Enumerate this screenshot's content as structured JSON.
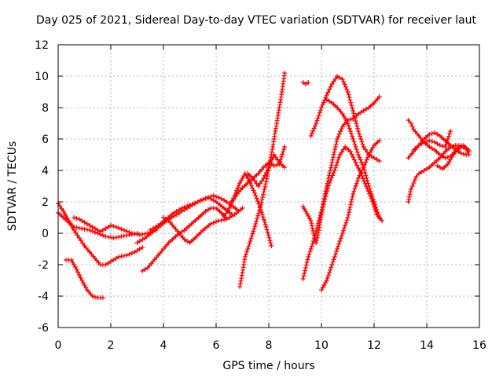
{
  "chart_data": {
    "type": "scatter",
    "title": "Day 025 of 2021, Sidereal Day-to-day VTEC variation (SDTVAR) for receiver laut",
    "xlabel": "GPS time / hours",
    "ylabel": "SDTVAR / TECUs",
    "xlim": [
      0,
      16
    ],
    "ylim": [
      -6,
      12
    ],
    "xticks": [
      0,
      2,
      4,
      6,
      8,
      10,
      12,
      14,
      16
    ],
    "yticks": [
      -6,
      -4,
      -2,
      0,
      2,
      4,
      6,
      8,
      10,
      12
    ],
    "grid": true,
    "marker": "plus",
    "color": "#ff0000",
    "series": [
      {
        "x": [
          0.3,
          0.5,
          0.7,
          0.9,
          1.1,
          1.3,
          1.5,
          1.7
        ],
        "y": [
          -1.7,
          -1.7,
          -2.3,
          -3.0,
          -3.6,
          -4.0,
          -4.1,
          -4.1
        ]
      },
      {
        "x": [
          0.0,
          0.2,
          0.4,
          0.6,
          0.9,
          1.2,
          1.5,
          1.8,
          2.1,
          2.4,
          2.7,
          3.0
        ],
        "y": [
          1.3,
          1.0,
          0.7,
          0.4,
          0.3,
          0.2,
          0.0,
          -0.2,
          -0.3,
          -0.2,
          -0.1,
          0.0
        ]
      },
      {
        "x": [
          0.0,
          0.2,
          0.4,
          0.6,
          0.8,
          1.0,
          1.2,
          1.4,
          1.6,
          1.8,
          2.0,
          2.3,
          2.6,
          2.9,
          3.2
        ],
        "y": [
          1.9,
          1.4,
          0.8,
          0.2,
          -0.3,
          -0.8,
          -1.2,
          -1.6,
          -2.0,
          -2.0,
          -1.8,
          -1.5,
          -1.4,
          -1.2,
          -0.9
        ]
      },
      {
        "x": [
          0.6,
          0.8,
          1.0,
          1.2,
          1.4,
          1.6,
          1.8,
          2.0,
          2.2,
          2.5,
          2.8,
          3.1,
          3.4,
          3.7
        ],
        "y": [
          1.0,
          0.9,
          0.7,
          0.5,
          0.3,
          0.1,
          0.3,
          0.5,
          0.4,
          0.2,
          0.0,
          -0.1,
          0.0,
          0.2
        ]
      },
      {
        "x": [
          3.2,
          3.4,
          3.6,
          3.8,
          4.0,
          4.2,
          4.4,
          4.6,
          4.8,
          5.0,
          5.2,
          5.4,
          5.6,
          5.8,
          6.0,
          6.2,
          6.4
        ],
        "y": [
          -2.4,
          -2.2,
          -1.8,
          -1.4,
          -1.0,
          -0.6,
          -0.3,
          0.0,
          0.2,
          0.5,
          0.8,
          1.1,
          1.4,
          1.6,
          1.6,
          1.3,
          0.9
        ]
      },
      {
        "x": [
          3.0,
          3.3,
          3.6,
          3.9,
          4.2,
          4.5,
          4.8,
          5.1,
          5.4,
          5.7,
          6.0,
          6.3,
          6.6
        ],
        "y": [
          -0.6,
          -0.3,
          0.1,
          0.5,
          0.9,
          1.2,
          1.5,
          1.8,
          2.1,
          2.3,
          2.0,
          1.6,
          1.2
        ]
      },
      {
        "x": [
          3.5,
          3.8,
          4.1,
          4.4,
          4.7,
          5.0,
          5.3,
          5.6,
          5.9,
          6.2,
          6.5,
          6.8
        ],
        "y": [
          0.2,
          0.5,
          0.9,
          1.3,
          1.6,
          1.8,
          2.0,
          2.2,
          2.4,
          2.2,
          1.9,
          1.5
        ]
      },
      {
        "x": [
          4.0,
          4.2,
          4.4,
          4.6,
          4.8,
          5.0,
          5.2,
          5.5,
          5.8,
          6.1,
          6.4,
          6.7,
          7.0
        ],
        "y": [
          1.0,
          0.8,
          0.4,
          0.0,
          -0.4,
          -0.6,
          -0.3,
          0.2,
          0.6,
          0.8,
          0.9,
          1.2,
          1.6
        ]
      },
      {
        "x": [
          6.3,
          6.5,
          6.7,
          6.9,
          7.1,
          7.3,
          7.5,
          7.7,
          7.9,
          8.1
        ],
        "y": [
          1.1,
          1.6,
          2.4,
          3.2,
          3.8,
          3.2,
          2.4,
          1.5,
          0.4,
          -0.8
        ]
      },
      {
        "x": [
          6.9,
          7.0,
          7.1,
          7.3,
          7.5,
          7.7,
          7.9,
          8.1,
          8.3,
          8.5,
          8.6
        ],
        "y": [
          -3.4,
          -2.5,
          -1.5,
          -0.5,
          0.6,
          1.8,
          3.3,
          5.0,
          7.0,
          9.0,
          10.2
        ]
      },
      {
        "x": [
          6.6,
          6.8,
          7.0,
          7.2,
          7.4,
          7.6,
          7.8,
          8.0,
          8.2,
          8.4,
          8.6
        ],
        "y": [
          2.0,
          2.5,
          2.9,
          3.2,
          3.5,
          3.8,
          4.2,
          4.5,
          4.3,
          4.4,
          5.5
        ]
      },
      {
        "x": [
          7.2,
          7.4,
          7.6,
          7.8,
          8.0,
          8.2,
          8.4,
          8.6
        ],
        "y": [
          3.8,
          3.5,
          3.0,
          3.5,
          4.2,
          5.0,
          4.5,
          4.2
        ]
      },
      {
        "x": [
          9.3,
          9.4,
          9.5
        ],
        "y": [
          9.6,
          9.5,
          9.6
        ]
      },
      {
        "x": [
          9.3,
          9.4,
          9.6,
          9.7,
          9.8,
          9.9,
          10.0,
          10.1,
          10.2,
          10.4,
          10.6,
          10.8,
          11.0,
          11.2,
          11.4,
          11.6,
          11.8,
          12.0,
          12.2
        ],
        "y": [
          1.7,
          1.4,
          0.8,
          0.0,
          -0.6,
          0.2,
          1.2,
          2.2,
          3.0,
          4.5,
          6.0,
          6.8,
          7.2,
          7.3,
          7.6,
          7.8,
          8.0,
          8.3,
          8.7
        ]
      },
      {
        "x": [
          9.3,
          9.4,
          9.5,
          9.7,
          9.9,
          10.1,
          10.3,
          10.5,
          10.7,
          10.9,
          11.1,
          11.3,
          11.5,
          11.7,
          11.9,
          12.1,
          12.3
        ],
        "y": [
          -2.9,
          -2.2,
          -1.5,
          -0.5,
          0.8,
          2.0,
          3.2,
          4.0,
          5.0,
          5.5,
          5.2,
          4.5,
          3.8,
          3.0,
          2.2,
          1.2,
          0.8
        ]
      },
      {
        "x": [
          9.6,
          9.8,
          10.0,
          10.2,
          10.4,
          10.6,
          10.8,
          11.0,
          11.2,
          11.4,
          11.6,
          11.8,
          12.0,
          12.2
        ],
        "y": [
          6.2,
          7.0,
          8.0,
          8.8,
          9.5,
          10.0,
          9.8,
          9.0,
          7.8,
          6.5,
          5.5,
          5.0,
          4.8,
          4.6
        ]
      },
      {
        "x": [
          10.0,
          10.2,
          10.4,
          10.6,
          10.8,
          11.0,
          11.2,
          11.4,
          11.6,
          11.8,
          12.0,
          12.2
        ],
        "y": [
          -3.6,
          -3.0,
          -2.0,
          -1.0,
          0.0,
          1.0,
          2.5,
          3.5,
          4.2,
          5.0,
          5.6,
          5.9
        ]
      },
      {
        "x": [
          10.2,
          10.4,
          10.6,
          10.8,
          11.0,
          11.2,
          11.4,
          11.6,
          11.8,
          12.0,
          12.2
        ],
        "y": [
          8.5,
          8.3,
          8.0,
          7.6,
          7.0,
          6.0,
          5.0,
          4.2,
          3.0,
          2.0,
          1.0
        ]
      },
      {
        "x": [
          13.3,
          13.4,
          13.5,
          13.7,
          13.9,
          14.1,
          14.3,
          14.5,
          14.7,
          14.9,
          15.1,
          15.3,
          15.5,
          15.6
        ],
        "y": [
          7.2,
          7.0,
          6.6,
          6.2,
          5.8,
          5.5,
          5.3,
          5.0,
          4.8,
          4.9,
          5.2,
          5.5,
          5.4,
          5.3
        ]
      },
      {
        "x": [
          13.3,
          13.4,
          13.5,
          13.6,
          13.7,
          13.9,
          14.1,
          14.3,
          14.5,
          14.7,
          14.9,
          15.1,
          15.3,
          15.5,
          15.6
        ],
        "y": [
          2.0,
          2.8,
          3.2,
          3.6,
          3.8,
          4.0,
          4.2,
          4.5,
          4.8,
          5.2,
          5.5,
          5.6,
          5.6,
          5.4,
          5.0
        ]
      },
      {
        "x": [
          13.3,
          13.5,
          13.7,
          13.9,
          14.1,
          14.3,
          14.5,
          14.7,
          14.9,
          15.1,
          15.3,
          15.5
        ],
        "y": [
          4.8,
          5.2,
          5.6,
          6.0,
          6.3,
          6.4,
          6.2,
          5.9,
          5.6,
          5.3,
          5.1,
          5.0
        ]
      },
      {
        "x": [
          13.5,
          13.7,
          13.9,
          14.1,
          14.3,
          14.5,
          14.7,
          14.9
        ],
        "y": [
          5.3,
          5.6,
          5.8,
          5.9,
          5.8,
          5.6,
          5.5,
          6.5
        ]
      },
      {
        "x": [
          14.4,
          14.6,
          14.8,
          15.0,
          15.2,
          15.4,
          15.6
        ],
        "y": [
          4.3,
          4.1,
          4.4,
          5.0,
          5.5,
          5.6,
          5.2
        ]
      }
    ]
  }
}
